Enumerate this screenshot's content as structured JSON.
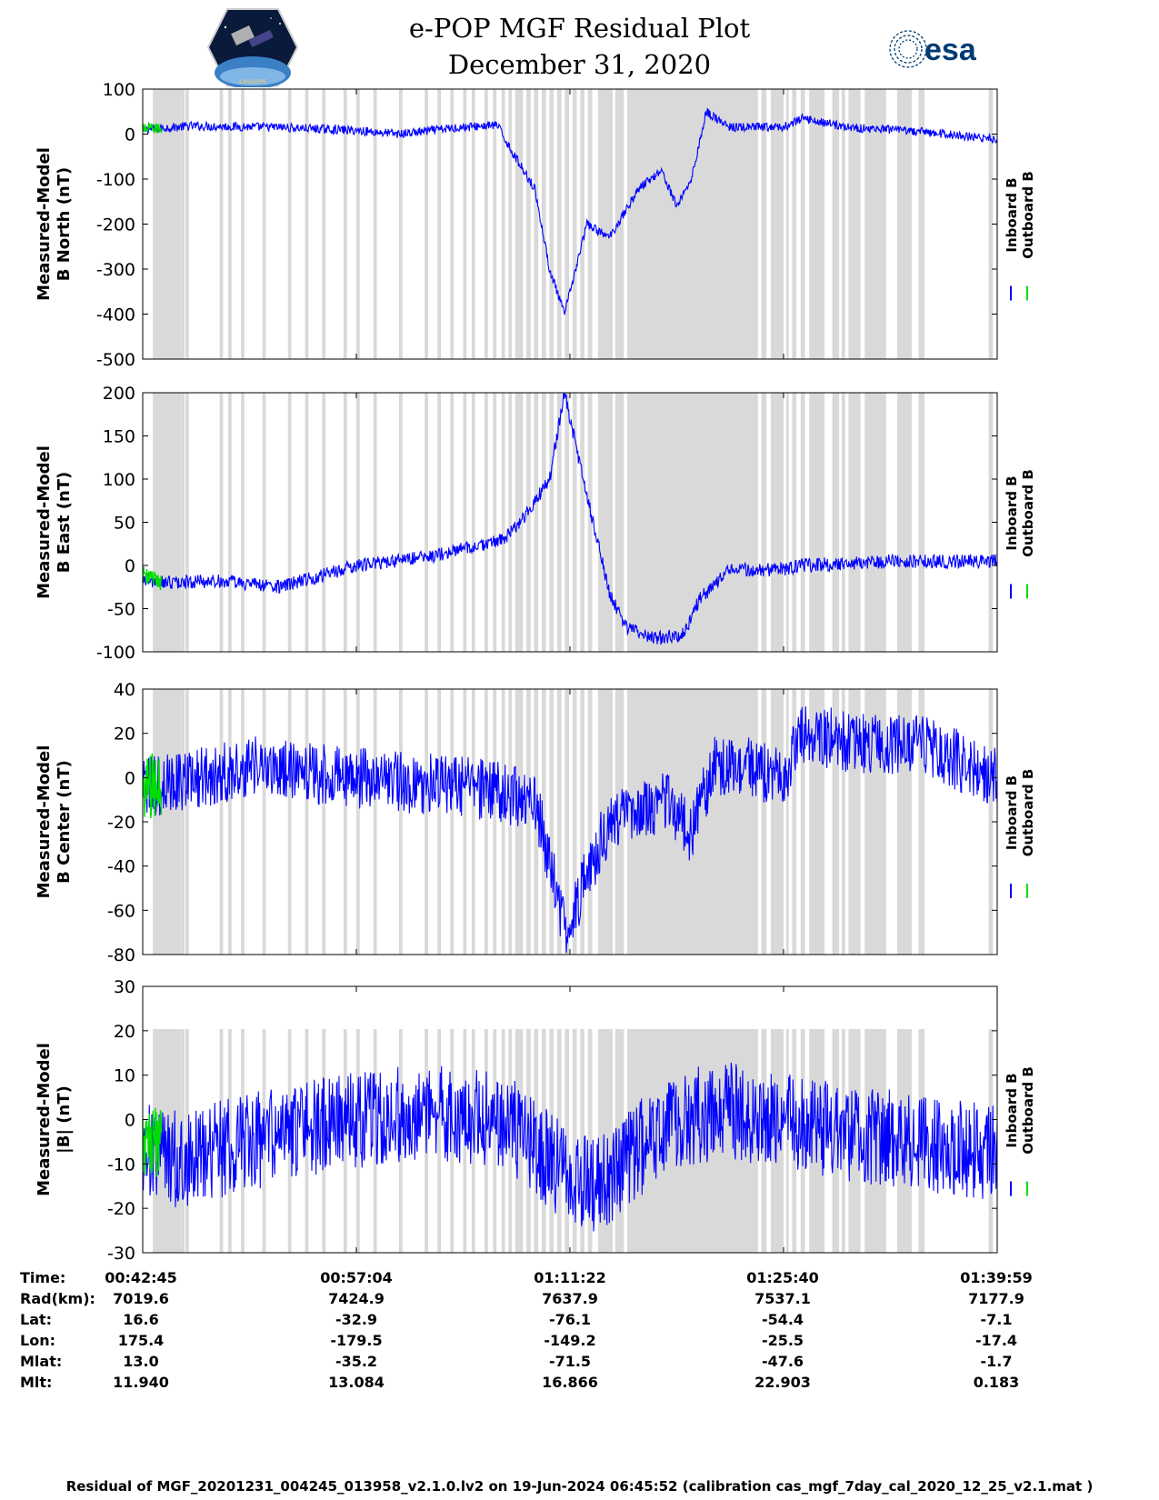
{
  "header": {
    "title_line1": "e-POP MGF Residual Plot",
    "title_line2": "December 31, 2020",
    "left_logo_text": "CASSIOPE",
    "right_logo_text": "esa"
  },
  "legend": {
    "inboard": "Inboard B",
    "outboard": "Outboard B"
  },
  "colors": {
    "inboard": "#0000ff",
    "outboard": "#00dd00",
    "shade": "#d9d9d9"
  },
  "info_table": {
    "row_labels": [
      "Time:",
      "Rad(km):",
      "Lat:",
      "Lon:",
      "Mlat:",
      "Mlt:"
    ],
    "columns": [
      [
        "00:42:45",
        "7019.6",
        "16.6",
        "175.4",
        "13.0",
        "11.940"
      ],
      [
        "00:57:04",
        "7424.9",
        "-32.9",
        "-179.5",
        "-35.2",
        "13.084"
      ],
      [
        "01:11:22",
        "7637.9",
        "-76.1",
        "-149.2",
        "-71.5",
        "16.866"
      ],
      [
        "01:25:40",
        "7537.1",
        "-54.4",
        "-25.5",
        "-47.6",
        "22.903"
      ],
      [
        "01:39:59",
        "7177.9",
        "-7.1",
        "-17.4",
        "-1.7",
        "0.183"
      ]
    ]
  },
  "footer": "Residual of MGF_20201231_004245_013958_v2.1.0.lv2 on 19-Jun-2024 06:45:52 (calibration cas_mgf_7day_cal_2020_12_25_v2.1.mat )",
  "chart_data": [
    {
      "type": "line",
      "ylabel_lines": [
        "Measured-Model",
        "B North (nT)"
      ],
      "xlim": [
        "00:42:45",
        "01:39:59"
      ],
      "ylim": [
        -500,
        100
      ],
      "yticks": [
        "100",
        "0",
        "-100",
        "-200",
        "-300",
        "-400",
        "-500"
      ],
      "series": [
        {
          "name": "Inboard B",
          "x": [
            "00:42:45",
            "00:46:00",
            "00:52:00",
            "00:57:04",
            "01:00:00",
            "01:04:00",
            "01:06:30",
            "01:07:30",
            "01:09:00",
            "01:10:00",
            "01:11:00",
            "01:12:30",
            "01:14:00",
            "01:16:00",
            "01:17:30",
            "01:18:30",
            "01:19:30",
            "01:20:30",
            "01:22:00",
            "01:25:40",
            "01:27:00",
            "01:30:00",
            "01:35:00",
            "01:39:59"
          ],
          "y": [
            10,
            18,
            15,
            8,
            0,
            15,
            20,
            -40,
            -120,
            -300,
            -400,
            -200,
            -230,
            -120,
            -80,
            -160,
            -100,
            50,
            15,
            15,
            35,
            15,
            5,
            -12
          ],
          "noise": 10
        },
        {
          "name": "Outboard B",
          "x": [
            "00:42:45",
            "00:44:00"
          ],
          "y": [
            12,
            12
          ],
          "noise": 12
        }
      ]
    },
    {
      "type": "line",
      "ylabel_lines": [
        "Measured-Model",
        "B East (nT)"
      ],
      "xlim": [
        "00:42:45",
        "01:39:59"
      ],
      "ylim": [
        -100,
        200
      ],
      "yticks": [
        "200",
        "150",
        "100",
        "50",
        "0",
        "-50",
        "-100"
      ],
      "series": [
        {
          "name": "Inboard B",
          "x": [
            "00:42:45",
            "00:44:00",
            "00:48:00",
            "00:52:00",
            "00:57:04",
            "01:02:00",
            "01:07:00",
            "01:08:30",
            "01:10:00",
            "01:11:00",
            "01:12:30",
            "01:14:00",
            "01:15:00",
            "01:17:00",
            "01:19:00",
            "01:20:00",
            "01:22:00",
            "01:25:40",
            "01:27:00",
            "01:33:00",
            "01:39:59"
          ],
          "y": [
            -15,
            -20,
            -18,
            -25,
            0,
            10,
            30,
            60,
            100,
            200,
            80,
            -30,
            -70,
            -85,
            -80,
            -40,
            -5,
            -5,
            0,
            5,
            5
          ],
          "noise": 8
        },
        {
          "name": "Outboard B",
          "x": [
            "00:42:45",
            "00:44:00"
          ],
          "y": [
            -10,
            -20
          ],
          "noise": 10
        }
      ]
    },
    {
      "type": "line",
      "ylabel_lines": [
        "Measured-Model",
        "B Center (nT)"
      ],
      "xlim": [
        "00:42:45",
        "01:39:59"
      ],
      "ylim": [
        -80,
        40
      ],
      "yticks": [
        "40",
        "20",
        "0",
        "-20",
        "-40",
        "-60",
        "-80"
      ],
      "series": [
        {
          "name": "Inboard B",
          "x": [
            "00:42:45",
            "00:50:00",
            "00:57:04",
            "01:05:00",
            "01:09:00",
            "01:10:30",
            "01:11:00",
            "01:12:30",
            "01:14:00",
            "01:16:00",
            "01:18:00",
            "01:19:30",
            "01:21:00",
            "01:23:00",
            "01:25:40",
            "01:27:00",
            "01:31:00",
            "01:35:00",
            "01:39:59"
          ],
          "y": [
            -5,
            5,
            0,
            -5,
            -10,
            -50,
            -70,
            -45,
            -20,
            -15,
            -10,
            -25,
            5,
            5,
            0,
            20,
            15,
            15,
            0
          ],
          "noise": 14
        },
        {
          "name": "Outboard B",
          "x": [
            "00:42:45",
            "00:44:00"
          ],
          "y": [
            -5,
            -5
          ],
          "noise": 16
        }
      ]
    },
    {
      "type": "line",
      "ylabel_lines": [
        "Measured-Model",
        "|B| (nT)"
      ],
      "xlim": [
        "00:42:45",
        "01:39:59"
      ],
      "ylim": [
        -30,
        30
      ],
      "yticks": [
        "30",
        "20",
        "10",
        "0",
        "-10",
        "-20",
        "-30"
      ],
      "series": [
        {
          "name": "Inboard B",
          "x": [
            "00:42:45",
            "00:45:00",
            "00:50:00",
            "00:57:04",
            "01:02:00",
            "01:07:00",
            "01:11:00",
            "01:13:00",
            "01:15:00",
            "01:18:00",
            "01:22:00",
            "01:25:40",
            "01:30:00",
            "01:35:00",
            "01:39:59"
          ],
          "y": [
            -7,
            -9,
            -5,
            0,
            2,
            0,
            -12,
            -15,
            -10,
            0,
            2,
            0,
            -3,
            -5,
            -8
          ],
          "noise": 11
        },
        {
          "name": "Outboard B",
          "x": [
            "00:42:45",
            "00:44:00"
          ],
          "y": [
            -5,
            -5
          ],
          "noise": 8
        }
      ]
    }
  ]
}
